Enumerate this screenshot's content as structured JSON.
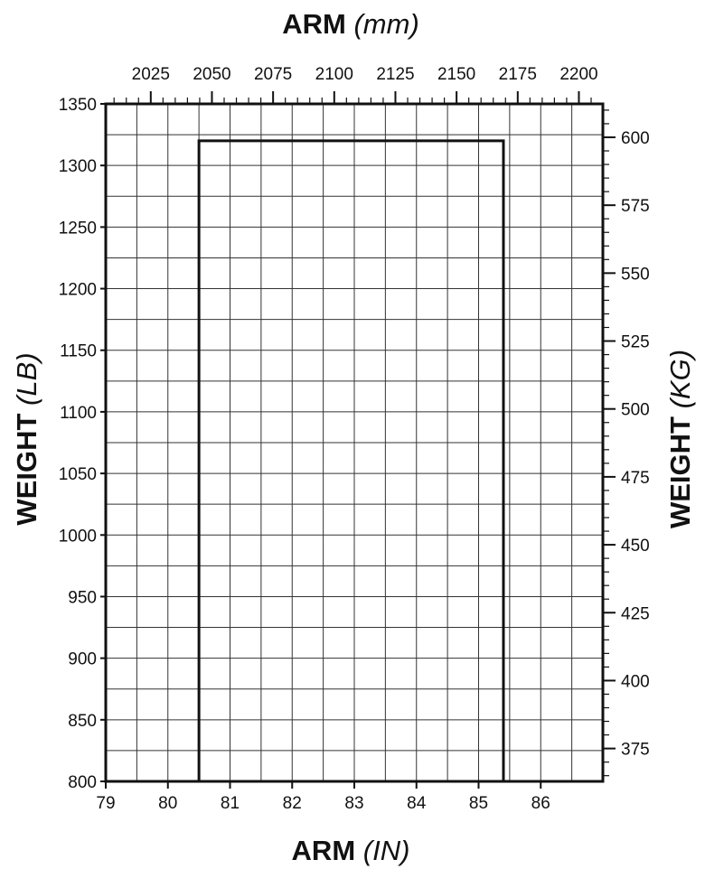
{
  "chart_data": {
    "type": "line",
    "title_top": {
      "main": "ARM",
      "unit": "(mm)"
    },
    "title_bottom": {
      "main": "ARM",
      "unit": "(IN)"
    },
    "title_left": {
      "main": "WEIGHT",
      "unit": "(LB)"
    },
    "title_right": {
      "main": "WEIGHT",
      "unit": "(KG)"
    },
    "x_bottom": {
      "min": 79,
      "max": 87,
      "ticks": [
        79,
        80,
        81,
        82,
        83,
        84,
        85,
        86
      ],
      "grid_step": 0.5
    },
    "x_top": {
      "ticks": [
        2025,
        2050,
        2075,
        2100,
        2125,
        2150,
        2175,
        2200
      ],
      "minor_step": 5,
      "range_mm": [
        2006.6,
        2209.8
      ]
    },
    "y_left": {
      "min": 800,
      "max": 1350,
      "ticks": [
        800,
        850,
        900,
        950,
        1000,
        1050,
        1100,
        1150,
        1200,
        1250,
        1300,
        1350
      ],
      "grid_step": 25
    },
    "y_right": {
      "ticks": [
        375,
        400,
        425,
        450,
        475,
        500,
        525,
        550,
        575,
        600
      ],
      "minor_step": 5,
      "range_kg": [
        362.9,
        612.3
      ]
    },
    "grid": true,
    "series": [
      {
        "x": [
          80.5,
          80.5,
          85.4,
          85.4
        ],
        "y": [
          800,
          1320,
          1320,
          800
        ]
      }
    ]
  }
}
